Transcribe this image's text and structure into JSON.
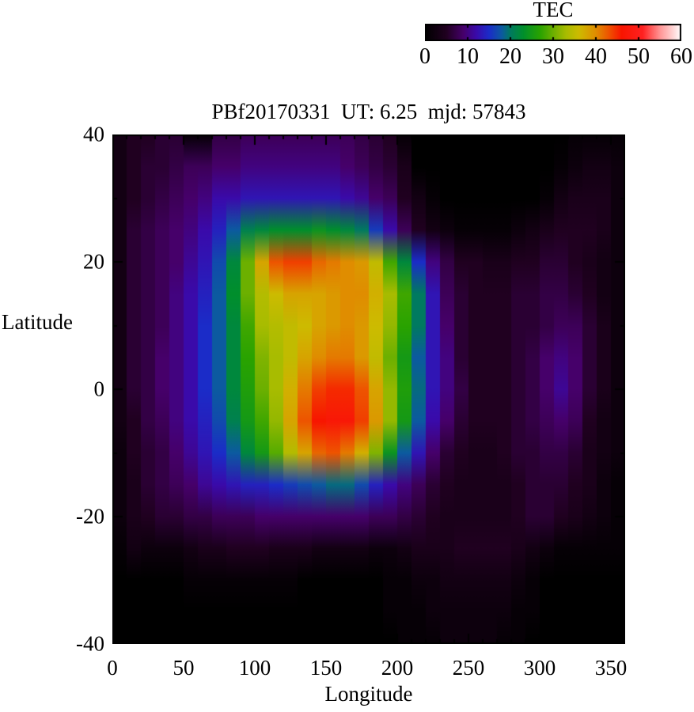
{
  "title": "PBf20170331  UT: 6.25  mjd: 57843",
  "colorbar": {
    "label": "TEC",
    "tick_labels": [
      "0",
      "10",
      "20",
      "30",
      "40",
      "50",
      "60"
    ],
    "min": 0,
    "max": 60
  },
  "axes": {
    "x_label": "Longitude",
    "y_label": "Latitude",
    "x_ticks": [
      0,
      50,
      100,
      150,
      200,
      250,
      300,
      350
    ],
    "y_ticks": [
      40,
      20,
      0,
      -20,
      -40
    ],
    "x_minor_step": 10,
    "y_minor_step": 10,
    "x_range": [
      0,
      360
    ],
    "y_range": [
      -40,
      40
    ]
  },
  "chart_data": {
    "type": "heatmap",
    "title": "PBf20170331  UT: 6.25  mjd: 57843",
    "xlabel": "Longitude",
    "ylabel": "Latitude",
    "value_label": "TEC",
    "xlim": [
      0,
      360
    ],
    "ylim": [
      -40,
      40
    ],
    "zlim": [
      0,
      60
    ],
    "grid_on": false,
    "legend_position": "top-right-colorbar",
    "lon_values": [
      0,
      10,
      20,
      30,
      40,
      50,
      60,
      70,
      80,
      90,
      100,
      110,
      120,
      130,
      140,
      150,
      160,
      170,
      180,
      190,
      200,
      210,
      220,
      230,
      240,
      250,
      260,
      270,
      280,
      290,
      300,
      310,
      320,
      330,
      340,
      350
    ],
    "lat_values": [
      40,
      35,
      30,
      25,
      20,
      15,
      10,
      5,
      0,
      -5,
      -10,
      -15,
      -20,
      -25,
      -30,
      -35,
      -40
    ],
    "grid": [
      [
        3,
        5,
        5,
        6,
        6,
        1,
        1,
        7,
        7,
        8,
        8,
        8,
        8,
        8,
        8,
        8,
        8,
        7,
        6,
        5,
        1,
        0,
        0,
        0,
        0,
        0,
        0,
        0,
        0,
        0,
        0,
        0,
        1,
        1,
        1,
        1
      ],
      [
        3,
        5,
        6,
        6,
        7,
        8,
        8,
        9,
        9,
        10,
        10,
        10,
        10,
        10,
        10,
        10,
        9,
        8,
        7,
        6,
        4,
        0,
        0,
        0,
        0,
        0,
        0,
        0,
        0,
        0,
        0,
        1,
        2,
        3,
        3,
        2
      ],
      [
        3,
        5,
        6,
        7,
        8,
        9,
        10,
        12,
        12,
        13,
        13,
        13,
        13,
        13,
        13,
        13,
        12,
        11,
        9,
        8,
        5,
        3,
        1,
        0,
        0,
        0,
        0,
        0,
        0,
        0,
        1,
        3,
        4,
        4,
        4,
        2
      ],
      [
        3,
        6,
        7,
        8,
        9,
        10,
        12,
        14,
        18,
        21,
        22,
        23,
        23,
        23,
        24,
        23,
        22,
        20,
        16,
        12,
        8,
        5,
        3,
        2,
        1,
        1,
        1,
        1,
        2,
        3,
        4,
        5,
        5,
        5,
        4,
        2
      ],
      [
        3,
        6,
        7,
        8,
        9,
        11,
        13,
        17,
        22,
        30,
        38,
        43,
        44,
        44,
        42,
        41,
        40,
        39,
        35,
        28,
        22,
        15,
        10,
        7,
        5,
        5,
        4,
        4,
        5,
        5,
        6,
        6,
        5,
        4,
        3,
        2
      ],
      [
        3,
        6,
        7,
        8,
        10,
        12,
        14,
        18,
        23,
        30,
        34,
        36,
        38,
        38,
        38,
        39,
        40,
        40,
        37,
        33,
        28,
        20,
        13,
        8,
        6,
        5,
        5,
        5,
        6,
        6,
        7,
        7,
        6,
        5,
        3,
        2
      ],
      [
        3,
        6,
        7,
        8,
        10,
        12,
        15,
        18,
        22,
        28,
        33,
        34,
        35,
        36,
        38,
        39,
        40,
        39,
        36,
        32,
        27,
        20,
        13,
        9,
        6,
        5,
        5,
        5,
        6,
        6,
        7,
        8,
        8,
        6,
        4,
        2
      ],
      [
        3,
        6,
        7,
        9,
        10,
        12,
        15,
        18,
        22,
        27,
        31,
        33,
        35,
        38,
        40,
        41,
        41,
        39,
        35,
        30,
        25,
        18,
        13,
        10,
        6,
        5,
        5,
        5,
        6,
        7,
        9,
        10,
        9,
        6,
        4,
        2
      ],
      [
        3,
        6,
        7,
        9,
        10,
        12,
        15,
        18,
        22,
        26,
        30,
        33,
        37,
        41,
        44,
        45,
        45,
        43,
        38,
        32,
        26,
        19,
        13,
        10,
        7,
        5,
        5,
        5,
        6,
        7,
        9,
        11,
        9,
        6,
        4,
        2
      ],
      [
        3,
        5,
        7,
        8,
        10,
        12,
        14,
        17,
        21,
        25,
        28,
        32,
        38,
        43,
        46,
        47,
        47,
        44,
        39,
        32,
        25,
        18,
        12,
        9,
        6,
        5,
        5,
        5,
        6,
        7,
        8,
        9,
        8,
        5,
        3,
        2
      ],
      [
        2,
        5,
        6,
        7,
        9,
        11,
        13,
        15,
        18,
        22,
        25,
        29,
        34,
        38,
        42,
        43,
        41,
        37,
        31,
        24,
        18,
        13,
        9,
        6,
        5,
        4,
        4,
        5,
        6,
        6,
        7,
        7,
        6,
        4,
        3,
        2
      ],
      [
        2,
        4,
        6,
        7,
        8,
        9,
        11,
        12,
        13,
        14,
        14,
        15,
        16,
        17,
        18,
        19,
        19,
        17,
        14,
        12,
        10,
        8,
        6,
        5,
        4,
        4,
        4,
        4,
        5,
        6,
        6,
        6,
        5,
        4,
        2,
        1
      ],
      [
        2,
        4,
        5,
        6,
        6,
        7,
        7,
        8,
        8,
        8,
        9,
        9,
        9,
        9,
        9,
        9,
        9,
        9,
        8,
        8,
        7,
        6,
        5,
        4,
        4,
        4,
        4,
        4,
        5,
        6,
        6,
        5,
        4,
        3,
        2,
        1
      ],
      [
        1,
        3,
        2,
        2,
        2,
        3,
        4,
        4,
        5,
        5,
        5,
        4,
        4,
        4,
        3,
        3,
        3,
        3,
        2,
        2,
        3,
        4,
        4,
        4,
        5,
        5,
        5,
        5,
        4,
        3,
        2,
        1,
        1,
        1,
        1,
        1
      ],
      [
        0,
        0,
        0,
        0,
        0,
        1,
        1,
        1,
        1,
        1,
        1,
        1,
        1,
        0,
        0,
        0,
        0,
        0,
        0,
        1,
        1,
        2,
        2,
        3,
        3,
        3,
        3,
        3,
        2,
        1,
        0,
        0,
        0,
        0,
        0,
        0
      ],
      [
        0,
        0,
        0,
        0,
        0,
        0,
        0,
        0,
        0,
        0,
        0,
        0,
        0,
        0,
        0,
        0,
        0,
        0,
        0,
        1,
        1,
        1,
        2,
        2,
        2,
        2,
        2,
        2,
        1,
        1,
        0,
        0,
        0,
        0,
        0,
        0
      ],
      [
        0,
        0,
        0,
        0,
        0,
        0,
        0,
        0,
        0,
        0,
        0,
        0,
        0,
        0,
        0,
        0,
        0,
        0,
        0,
        0,
        1,
        1,
        1,
        2,
        2,
        2,
        2,
        1,
        1,
        0,
        0,
        0,
        0,
        0,
        0,
        0
      ]
    ],
    "colormap_stops": [
      [
        0,
        "#000000"
      ],
      [
        5,
        "#200020"
      ],
      [
        9,
        "#46006a"
      ],
      [
        12,
        "#3a0aaa"
      ],
      [
        15,
        "#1b2cc8"
      ],
      [
        18,
        "#0c5aa0"
      ],
      [
        20,
        "#007a60"
      ],
      [
        23,
        "#008f2c"
      ],
      [
        27,
        "#2aa300"
      ],
      [
        30,
        "#6cb000"
      ],
      [
        33,
        "#a8bc00"
      ],
      [
        36,
        "#cdbb00"
      ],
      [
        40,
        "#e08d00"
      ],
      [
        43,
        "#ee5400"
      ],
      [
        46,
        "#f81500"
      ],
      [
        51,
        "#ff2222"
      ],
      [
        55,
        "#ff9494"
      ],
      [
        60,
        "#ffffff"
      ]
    ],
    "frame_color": "#000000",
    "background_color": "#ffffff"
  }
}
